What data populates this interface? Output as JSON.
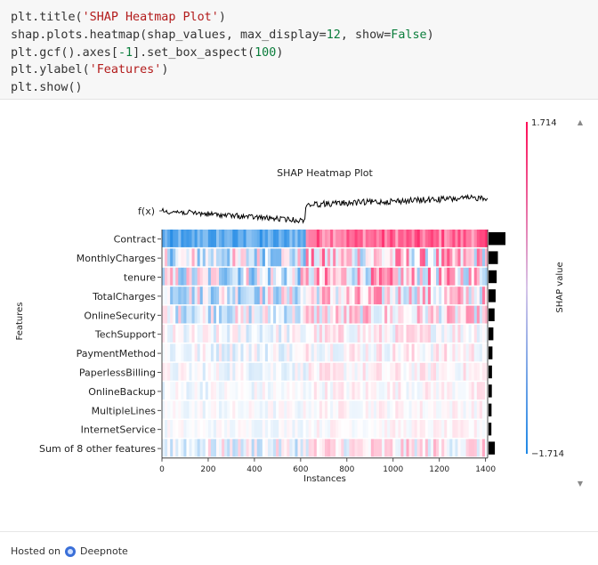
{
  "code": {
    "lines": [
      [
        {
          "t": "plt.title("
        },
        {
          "t": "'SHAP Heatmap Plot'",
          "c": "str"
        },
        {
          "t": ")"
        }
      ],
      [
        {
          "t": "shap.plots.heatmap(shap_values, max_display="
        },
        {
          "t": "12",
          "c": "num"
        },
        {
          "t": ", show="
        },
        {
          "t": "False",
          "c": "kw"
        },
        {
          "t": ")"
        }
      ],
      [
        {
          "t": "plt.gcf().axes["
        },
        {
          "t": "-1",
          "c": "num"
        },
        {
          "t": "].set_box_aspect("
        },
        {
          "t": "100",
          "c": "num"
        },
        {
          "t": ")"
        }
      ],
      [
        {
          "t": "plt.ylabel("
        },
        {
          "t": "'Features'",
          "c": "str"
        },
        {
          "t": ")"
        }
      ],
      [
        {
          "t": "plt.show()"
        }
      ]
    ]
  },
  "footer": {
    "hosted_on": "Hosted on",
    "brand": "Deepnote"
  },
  "chart_data": {
    "type": "heatmap",
    "title": "SHAP Heatmap Plot",
    "fx_label": "f(x)",
    "xlabel": "Instances",
    "ylabel": "Features",
    "colorbar_label": "SHAP value",
    "colorbar_max": "1.714",
    "colorbar_min": "−1.714",
    "xlim": [
      0,
      1409
    ],
    "xticks": [
      0,
      200,
      400,
      600,
      800,
      1000,
      1200,
      1400
    ],
    "features": [
      {
        "name": "Contract",
        "importance": 1.0,
        "intensity": 0.95
      },
      {
        "name": "MonthlyCharges",
        "importance": 0.5,
        "intensity": 0.6
      },
      {
        "name": "tenure",
        "importance": 0.42,
        "intensity": 0.6
      },
      {
        "name": "TotalCharges",
        "importance": 0.35,
        "intensity": 0.5
      },
      {
        "name": "OnlineSecurity",
        "importance": 0.28,
        "intensity": 0.4
      },
      {
        "name": "TechSupport",
        "importance": 0.2,
        "intensity": 0.22
      },
      {
        "name": "PaymentMethod",
        "importance": 0.14,
        "intensity": 0.2
      },
      {
        "name": "PaperlessBilling",
        "importance": 0.11,
        "intensity": 0.16
      },
      {
        "name": "OnlineBackup",
        "importance": 0.1,
        "intensity": 0.14
      },
      {
        "name": "MultipleLines",
        "importance": 0.08,
        "intensity": 0.12
      },
      {
        "name": "InternetService",
        "importance": 0.07,
        "intensity": 0.1
      },
      {
        "name": "Sum of 8 other features",
        "importance": 0.3,
        "intensity": 0.3
      }
    ],
    "negative_region_end": 620,
    "colors": {
      "positive": "#ff0d57",
      "negative": "#1e88e5",
      "neutral": "#ffffff"
    }
  }
}
